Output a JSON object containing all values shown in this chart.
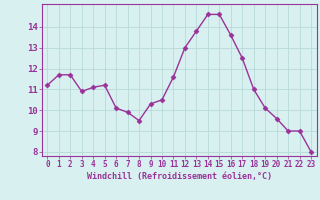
{
  "x": [
    0,
    1,
    2,
    3,
    4,
    5,
    6,
    7,
    8,
    9,
    10,
    11,
    12,
    13,
    14,
    15,
    16,
    17,
    18,
    19,
    20,
    21,
    22,
    23
  ],
  "y": [
    11.2,
    11.7,
    11.7,
    10.9,
    11.1,
    11.2,
    10.1,
    9.9,
    9.5,
    10.3,
    10.5,
    11.6,
    13.0,
    13.8,
    14.6,
    14.6,
    13.6,
    12.5,
    11.0,
    10.1,
    9.6,
    9.0,
    9.0,
    8.0
  ],
  "line_color": "#993399",
  "marker": "D",
  "marker_size": 2.5,
  "line_width": 1.0,
  "bg_color": "#d8f0f0",
  "grid_color": "#b8dada",
  "xlabel": "Windchill (Refroidissement éolien,°C)",
  "xlabel_color": "#993399",
  "tick_color": "#993399",
  "ylim_min": 7.8,
  "ylim_max": 15.1,
  "xlim_min": -0.5,
  "xlim_max": 23.5,
  "yticks": [
    8,
    9,
    10,
    11,
    12,
    13,
    14
  ],
  "xticks": [
    0,
    1,
    2,
    3,
    4,
    5,
    6,
    7,
    8,
    9,
    10,
    11,
    12,
    13,
    14,
    15,
    16,
    17,
    18,
    19,
    20,
    21,
    22,
    23
  ],
  "tick_fontsize": 5.5,
  "xlabel_fontsize": 6.0,
  "ytick_fontsize": 6.5
}
